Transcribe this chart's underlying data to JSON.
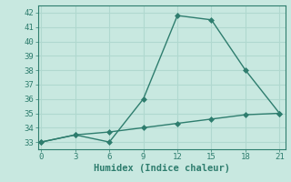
{
  "xlabel": "Humidex (Indice chaleur)",
  "x": [
    0,
    3,
    6,
    9,
    12,
    15,
    18,
    21
  ],
  "line1_y": [
    33,
    33.5,
    33,
    36,
    41.8,
    41.5,
    38,
    35
  ],
  "line2_y": [
    33,
    33.5,
    33.7,
    34.0,
    34.3,
    34.6,
    34.9,
    35
  ],
  "line_color": "#2e7d6e",
  "bg_color": "#c8e8e0",
  "grid_color": "#b0d8cf",
  "ylim": [
    32.5,
    42.5
  ],
  "xlim": [
    -0.3,
    21.5
  ],
  "yticks": [
    33,
    34,
    35,
    36,
    37,
    38,
    39,
    40,
    41,
    42
  ],
  "xticks": [
    0,
    3,
    6,
    9,
    12,
    15,
    18,
    21
  ],
  "markersize": 3,
  "linewidth": 1.0,
  "tick_fontsize": 6.5,
  "label_fontsize": 7.5
}
